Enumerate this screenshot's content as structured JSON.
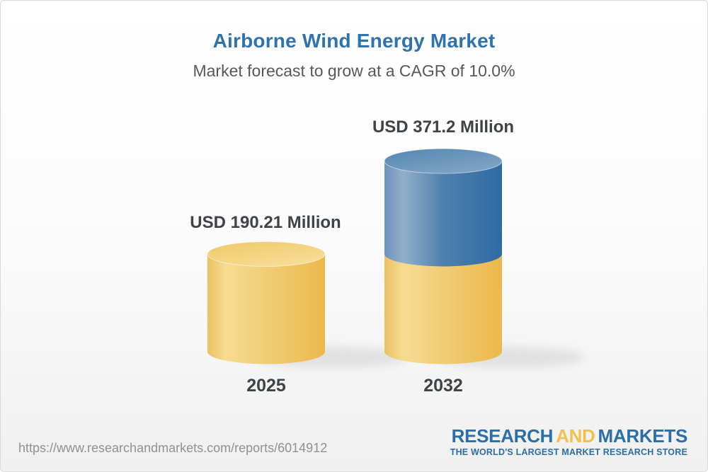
{
  "header": {
    "title": "Airborne Wind Energy Market",
    "subtitle": "Market forecast to grow at a CAGR of 10.0%"
  },
  "chart_data": {
    "type": "bar",
    "style": "3d-cylinder-stacked",
    "title": "Airborne Wind Energy Market",
    "subtitle": "Market forecast to grow at a CAGR of 10.0%",
    "categories": [
      "2025",
      "2032"
    ],
    "values": [
      190.21,
      371.2
    ],
    "value_labels": [
      "USD 190.21 Million",
      "USD 371.2 Million"
    ],
    "unit": "USD Million",
    "cagr_pct": 10.0,
    "axes_shown": false,
    "grid": false,
    "legend": false,
    "colors": {
      "base_segment_gold": "#F0C865",
      "growth_segment_blue": "#4E80AD",
      "title_blue": "#2E73AE",
      "label_dark": "#3F4246"
    }
  },
  "footer": {
    "url": "https://www.researchandmarkets.com/reports/6014912",
    "logo": {
      "part1": "RESEARCH",
      "part2": "AND",
      "part3": "MARKETS",
      "tagline": "THE WORLD'S LARGEST MARKET RESEARCH STORE"
    }
  }
}
